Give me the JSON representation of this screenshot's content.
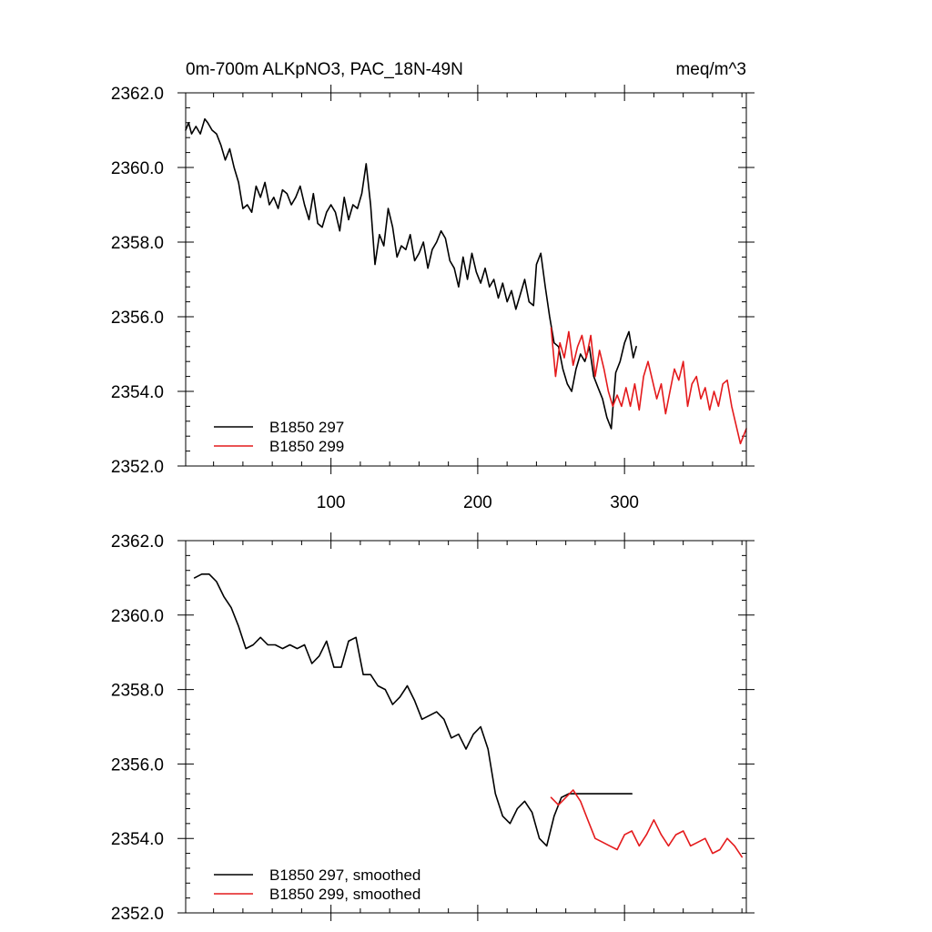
{
  "chart_data": [
    {
      "type": "line",
      "title_left": "0m-700m ALKpNO3, PAC_18N-49N",
      "title_right": "meq/m^3",
      "xlabel": "",
      "ylabel": "",
      "xlim": [
        1,
        383
      ],
      "ylim": [
        2352,
        2362
      ],
      "xticks": [
        100,
        200,
        300
      ],
      "xtick_labels": [
        "100",
        "200",
        "300"
      ],
      "yticks": [
        2352,
        2354,
        2356,
        2358,
        2360,
        2362
      ],
      "ytick_labels": [
        "2352.0",
        "2354.0",
        "2356.0",
        "2358.0",
        "2360.0",
        "2362.0"
      ],
      "show_xtick_labels": true,
      "legend_position": "bottom-left",
      "series": [
        {
          "name": "B1850 297",
          "color": "#000000",
          "x": [
            1,
            3,
            5,
            8,
            11,
            14,
            16,
            19,
            22,
            25,
            28,
            31,
            34,
            37,
            40,
            43,
            46,
            49,
            52,
            55,
            58,
            61,
            64,
            67,
            70,
            73,
            76,
            79,
            82,
            85,
            88,
            91,
            94,
            97,
            100,
            103,
            106,
            109,
            112,
            115,
            118,
            121,
            124,
            127,
            130,
            133,
            136,
            139,
            142,
            145,
            148,
            151,
            154,
            157,
            160,
            163,
            166,
            169,
            172,
            175,
            178,
            181,
            184,
            187,
            190,
            193,
            196,
            199,
            202,
            205,
            208,
            211,
            214,
            217,
            220,
            223,
            226,
            229,
            232,
            235,
            238,
            240,
            243,
            246,
            249,
            252,
            255,
            258,
            261,
            264,
            267,
            270,
            273,
            276,
            279,
            282,
            285,
            288,
            291,
            294,
            297,
            300,
            303,
            306,
            308
          ],
          "values": [
            2361.0,
            2361.2,
            2360.9,
            2361.1,
            2360.9,
            2361.3,
            2361.2,
            2361.0,
            2360.9,
            2360.6,
            2360.2,
            2360.5,
            2360.0,
            2359.6,
            2358.9,
            2359.0,
            2358.8,
            2359.5,
            2359.2,
            2359.6,
            2359.0,
            2359.2,
            2358.9,
            2359.4,
            2359.3,
            2359.0,
            2359.2,
            2359.5,
            2359.0,
            2358.6,
            2359.3,
            2358.5,
            2358.4,
            2358.8,
            2359.0,
            2358.8,
            2358.3,
            2359.2,
            2358.6,
            2359.0,
            2358.9,
            2359.3,
            2360.1,
            2359.0,
            2357.4,
            2358.2,
            2357.9,
            2358.9,
            2358.4,
            2357.6,
            2357.9,
            2357.8,
            2358.2,
            2357.5,
            2357.7,
            2358.0,
            2357.3,
            2357.8,
            2358.0,
            2358.3,
            2358.1,
            2357.5,
            2357.3,
            2356.8,
            2357.6,
            2357.0,
            2357.7,
            2357.2,
            2356.9,
            2357.3,
            2356.8,
            2357.0,
            2356.5,
            2356.9,
            2356.4,
            2356.7,
            2356.2,
            2356.6,
            2357.0,
            2356.4,
            2356.3,
            2357.4,
            2357.7,
            2356.8,
            2356.0,
            2355.3,
            2355.2,
            2354.6,
            2354.2,
            2354.0,
            2354.6,
            2355.0,
            2354.8,
            2355.2,
            2354.4,
            2354.1,
            2353.8,
            2353.3,
            2353.0,
            2354.5,
            2354.8,
            2355.3,
            2355.6,
            2354.9,
            2355.2
          ]
        },
        {
          "name": "B1850 299",
          "color": "#e41a1c",
          "x": [
            250,
            253,
            256,
            259,
            262,
            265,
            268,
            271,
            274,
            277,
            280,
            283,
            286,
            289,
            292,
            295,
            298,
            301,
            304,
            307,
            310,
            313,
            316,
            319,
            322,
            325,
            328,
            331,
            334,
            337,
            340,
            343,
            346,
            349,
            352,
            355,
            358,
            361,
            364,
            367,
            370,
            373,
            376,
            379,
            382,
            383
          ],
          "values": [
            2355.7,
            2354.4,
            2355.3,
            2354.9,
            2355.6,
            2354.7,
            2355.2,
            2355.5,
            2354.9,
            2355.5,
            2354.4,
            2355.1,
            2354.6,
            2354.0,
            2353.6,
            2353.9,
            2353.6,
            2354.1,
            2353.6,
            2354.2,
            2353.5,
            2354.4,
            2354.8,
            2354.3,
            2353.8,
            2354.2,
            2353.4,
            2354.0,
            2354.6,
            2354.3,
            2354.8,
            2353.6,
            2354.2,
            2354.4,
            2353.8,
            2354.1,
            2353.5,
            2354.0,
            2353.6,
            2354.2,
            2354.3,
            2353.6,
            2353.1,
            2352.6,
            2352.9,
            2353.0
          ]
        }
      ]
    },
    {
      "type": "line",
      "title_left": "",
      "title_right": "",
      "xlabel": "",
      "ylabel": "",
      "xlim": [
        1,
        383
      ],
      "ylim": [
        2352,
        2362
      ],
      "xticks": [
        100,
        200,
        300
      ],
      "xtick_labels": [
        "100",
        "200",
        "300"
      ],
      "yticks": [
        2352,
        2354,
        2356,
        2358,
        2360,
        2362
      ],
      "ytick_labels": [
        "2352.0",
        "2354.0",
        "2356.0",
        "2358.0",
        "2360.0",
        "2362.0"
      ],
      "show_xtick_labels": false,
      "legend_position": "bottom-left",
      "series": [
        {
          "name": "B1850 297, smoothed",
          "color": "#000000",
          "x": [
            7,
            12,
            17,
            22,
            27,
            32,
            37,
            42,
            47,
            52,
            57,
            62,
            67,
            72,
            77,
            82,
            87,
            92,
            97,
            102,
            107,
            112,
            117,
            122,
            127,
            132,
            137,
            142,
            147,
            152,
            157,
            162,
            167,
            172,
            177,
            182,
            187,
            192,
            197,
            202,
            207,
            212,
            217,
            222,
            227,
            232,
            237,
            242,
            247,
            252,
            257,
            262,
            267,
            272,
            277,
            282,
            287,
            292,
            297,
            302,
            305
          ],
          "values": [
            2361.0,
            2361.1,
            2361.1,
            2360.9,
            2360.5,
            2360.2,
            2359.7,
            2359.1,
            2359.2,
            2359.4,
            2359.2,
            2359.2,
            2359.1,
            2359.2,
            2359.1,
            2359.2,
            2358.7,
            2358.9,
            2359.3,
            2358.6,
            2358.6,
            2359.3,
            2359.4,
            2358.4,
            2358.4,
            2358.1,
            2358.0,
            2357.6,
            2357.8,
            2358.1,
            2357.7,
            2357.2,
            2357.3,
            2357.4,
            2357.2,
            2356.7,
            2356.8,
            2356.4,
            2356.8,
            2357.0,
            2356.4,
            2355.2,
            2354.6,
            2354.4,
            2354.8,
            2355.0,
            2354.7,
            2354.0,
            2353.8,
            2354.6,
            2355.1,
            2355.2,
            2355.2,
            2355.2,
            2355.2,
            2355.2,
            2355.2,
            2355.2,
            2355.2,
            2355.2,
            2355.2
          ],
          "points": 53
        },
        {
          "name": "B1850 299, smoothed",
          "color": "#e41a1c",
          "x": [
            250,
            255,
            260,
            265,
            270,
            275,
            280,
            285,
            290,
            295,
            300,
            305,
            310,
            315,
            320,
            325,
            330,
            335,
            340,
            345,
            350,
            355,
            360,
            365,
            370,
            375,
            380
          ],
          "values": [
            2355.1,
            2354.9,
            2355.1,
            2355.3,
            2355.0,
            2354.5,
            2354.0,
            2353.9,
            2353.8,
            2353.7,
            2354.1,
            2354.2,
            2353.8,
            2354.1,
            2354.5,
            2354.1,
            2353.8,
            2354.1,
            2354.2,
            2353.8,
            2353.9,
            2354.0,
            2353.6,
            2353.7,
            2354.0,
            2353.8,
            2353.5
          ]
        }
      ]
    }
  ]
}
